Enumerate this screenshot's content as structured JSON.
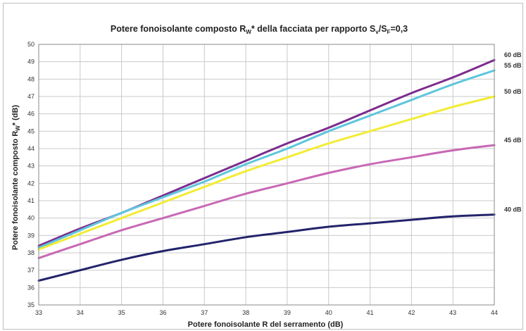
{
  "chart_data": {
    "type": "line",
    "title": {
      "prefix": "Potere fonoisolante composto R",
      "prefix_sub": "W",
      "middle": "* della facciata per rapporto S",
      "middle_sub": "v",
      "slash": "/S",
      "slash_sub": "F",
      "suffix": "=0,3"
    },
    "xlabel": "Potere fonoisolante R del serramento (dB)",
    "ylabel": {
      "prefix": "Potere fonoisolante composto R",
      "sub": "W",
      "suffix": "* (dB)"
    },
    "x": [
      33,
      34,
      35,
      36,
      37,
      38,
      39,
      40,
      41,
      42,
      43,
      44
    ],
    "xlim": [
      33,
      44
    ],
    "ylim": [
      35,
      50
    ],
    "y_ticks": [
      35,
      36,
      37,
      38,
      39,
      40,
      41,
      42,
      43,
      44,
      45,
      46,
      47,
      48,
      49,
      50
    ],
    "grid": true,
    "legend": "end-of-line labels on the right",
    "series": [
      {
        "name": "60 dB",
        "color": "#7d2c8e",
        "values": [
          38.4,
          39.4,
          40.3,
          41.3,
          42.3,
          43.3,
          44.3,
          45.2,
          46.2,
          47.2,
          48.1,
          49.1
        ]
      },
      {
        "name": "55 dB",
        "color": "#5ec6dc",
        "values": [
          38.3,
          39.3,
          40.3,
          41.2,
          42.1,
          43.1,
          44.0,
          45.0,
          45.9,
          46.8,
          47.7,
          48.5
        ]
      },
      {
        "name": "50 dB",
        "color": "#f2ec35",
        "values": [
          38.2,
          39.1,
          40.0,
          40.9,
          41.8,
          42.7,
          43.5,
          44.3,
          45.0,
          45.7,
          46.4,
          47.0
        ]
      },
      {
        "name": "45 dB",
        "color": "#c868b4",
        "values": [
          37.7,
          38.5,
          39.3,
          40.0,
          40.7,
          41.4,
          42.0,
          42.6,
          43.1,
          43.5,
          43.9,
          44.2
        ]
      },
      {
        "name": "40 dB",
        "color": "#23236b",
        "values": [
          36.4,
          37.0,
          37.6,
          38.1,
          38.5,
          38.9,
          39.2,
          39.5,
          39.7,
          39.9,
          40.1,
          40.2
        ]
      }
    ]
  }
}
